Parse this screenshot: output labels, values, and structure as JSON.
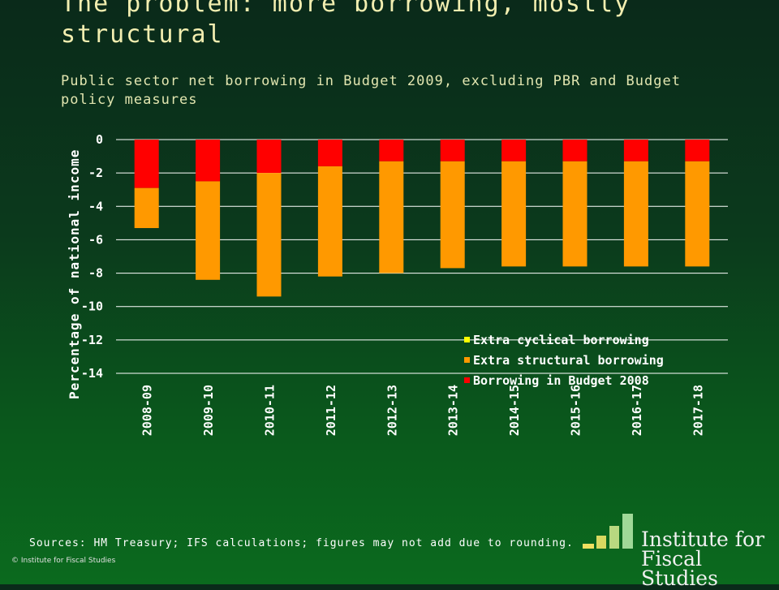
{
  "title": "The problem: more borrowing, mostly structural",
  "subtitle": "Public sector net borrowing in Budget 2009, excluding PBR and Budget policy measures",
  "chart_data": {
    "type": "bar",
    "stacked": true,
    "categories": [
      "2008-09",
      "2009-10",
      "2010-11",
      "2011-12",
      "2012-13",
      "2013-14",
      "2014-15",
      "2015-16",
      "2016-17",
      "2017-18"
    ],
    "series": [
      {
        "name": "Borrowing in Budget 2008",
        "color": "#ff0000",
        "values": [
          -2.9,
          -2.5,
          -2.0,
          -1.6,
          -1.3,
          -1.3,
          -1.3,
          -1.3,
          -1.3,
          -1.3
        ]
      },
      {
        "name": "Extra structural borrowing",
        "color": "#ff9900",
        "values": [
          -2.4,
          -5.9,
          -7.4,
          -6.6,
          -6.7,
          -6.4,
          -6.3,
          -6.3,
          -6.3,
          -6.3
        ]
      },
      {
        "name": "Extra cyclical borrowing",
        "color": "#ffff00",
        "values": [
          0,
          0,
          0,
          0,
          0,
          0,
          0,
          0,
          0,
          0
        ]
      }
    ],
    "legend_order": [
      "Extra cyclical borrowing",
      "Extra structural borrowing",
      "Borrowing in Budget 2008"
    ],
    "ylabel": "Percentage of national income",
    "ylim": [
      -14,
      0
    ],
    "yticks": [
      0,
      -2,
      -4,
      -6,
      -8,
      -10,
      -12,
      -14
    ],
    "grid": true,
    "legend_position": "bottom-right"
  },
  "footer": {
    "sources": "Sources: HM Treasury; IFS calculations; figures may not add due to rounding.",
    "copyright": "© Institute for Fiscal Studies"
  },
  "logo": {
    "line1": "Institute for",
    "line2": "Fiscal Studies",
    "bar_colors": [
      "#f0e060",
      "#d8d860",
      "#b8d880",
      "#a0d898"
    ]
  }
}
